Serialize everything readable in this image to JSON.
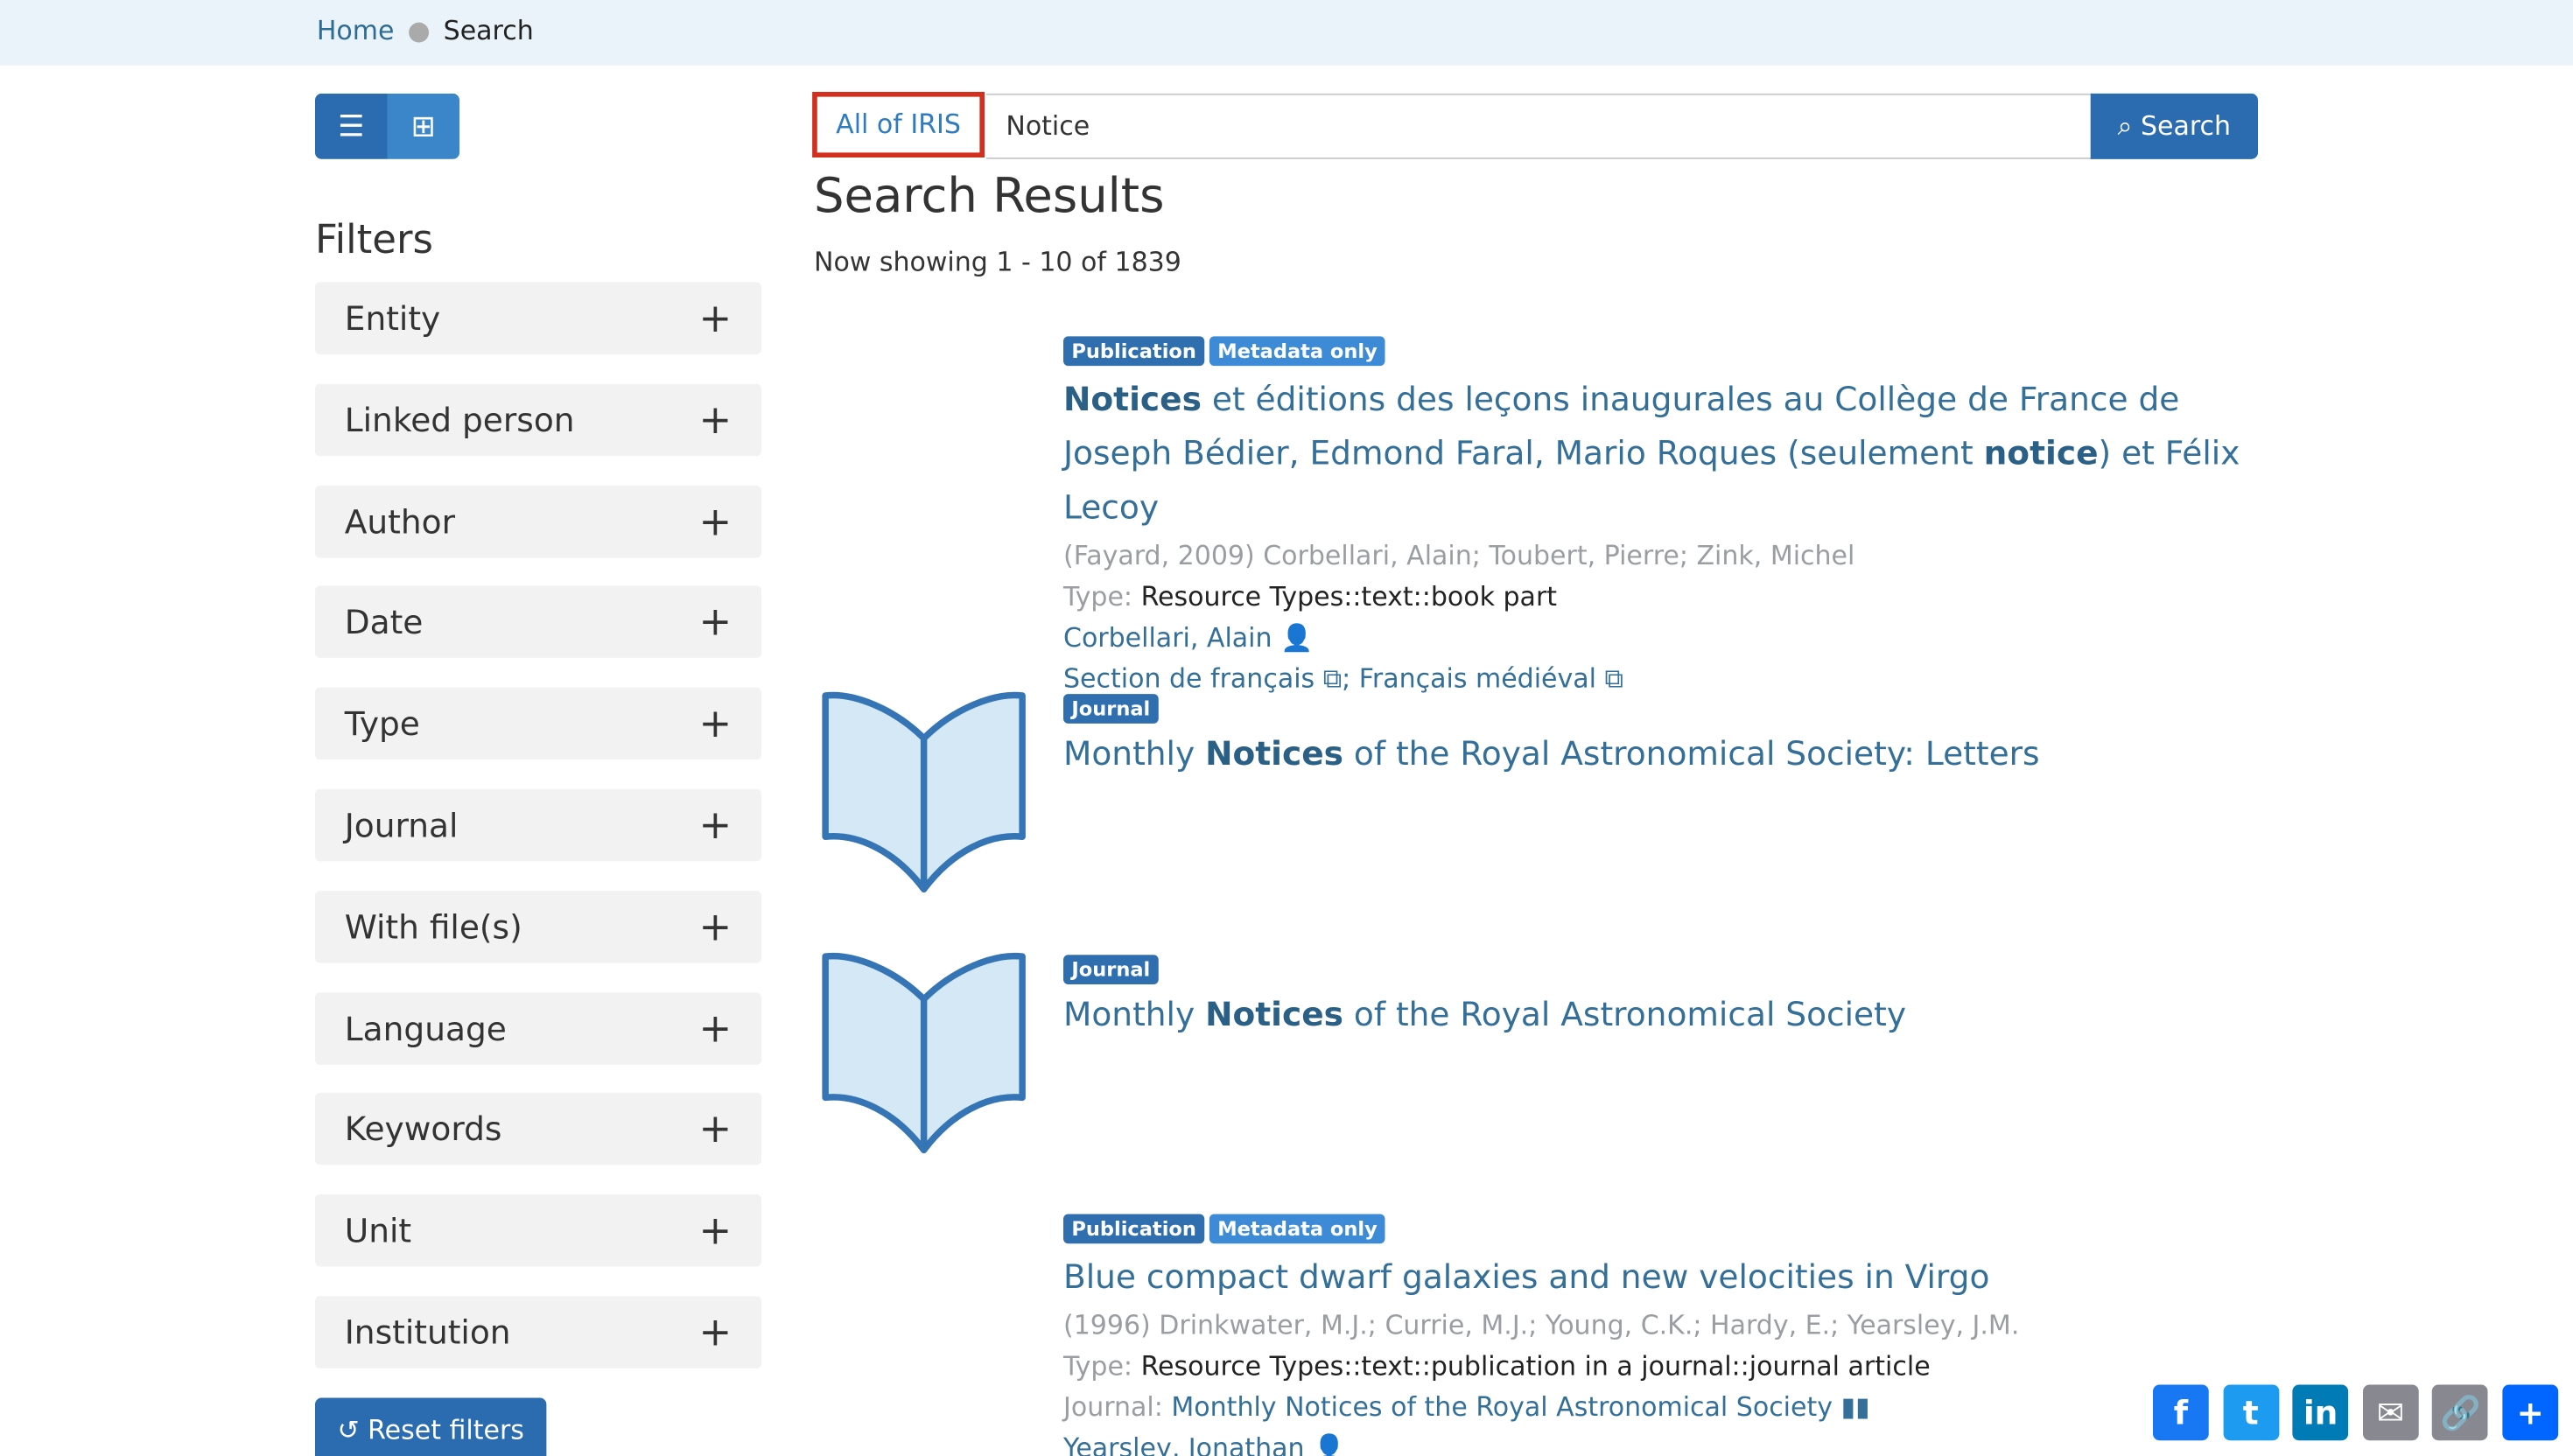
{
  "breadcrumb": {
    "home": "Home",
    "current": "Search"
  },
  "view_toggle": {
    "list_icon": "list-icon",
    "grid_icon": "grid-icon"
  },
  "filters": {
    "title": "Filters",
    "items": [
      "Entity",
      "Linked person",
      "Author",
      "Date",
      "Type",
      "Journal",
      "With file(s)",
      "Language",
      "Keywords",
      "Unit",
      "Institution"
    ],
    "reset": "Reset filters"
  },
  "search": {
    "scope": "All of IRIS",
    "query": "Notice",
    "button": "Search"
  },
  "results": {
    "title": "Search Results",
    "count": "Now showing 1 - 10 of 1839",
    "items": [
      {
        "badges": [
          "Publication",
          "Metadata only"
        ],
        "title_bold1": "Notices",
        "title_mid": " et éditions des leçons inaugurales au Collège de France de Joseph Bédier, Edmond Faral, Mario Roques (seulement ",
        "title_bold2": "notice",
        "title_end": ") et Félix Lecoy",
        "meta": "(Fayard, 2009) Corbellari, Alain; Toubert, Pierre; Zink, Michel",
        "type_label": "Type:",
        "type": "Resource Types::text::book part",
        "person": "Corbellari, Alain",
        "unit1": "Section de français",
        "unit2": "; Français médiéval"
      },
      {
        "badges": [
          "Journal"
        ],
        "title_pre": "Monthly ",
        "title_bold": "Notices",
        "title_post": " of the Royal Astronomical Society: Letters"
      },
      {
        "badges": [
          "Journal"
        ],
        "title_pre": "Monthly ",
        "title_bold": "Notices",
        "title_post": " of the Royal Astronomical Society"
      },
      {
        "badges": [
          "Publication",
          "Metadata only"
        ],
        "title": "Blue compact dwarf galaxies and new velocities in Virgo",
        "meta": "(1996) Drinkwater, M.J.; Currie, M.J.; Young, C.K.; Hardy, E.; Yearsley, J.M.",
        "type_label": "Type:",
        "type": "Resource Types::text::publication in a journal::journal article",
        "journal_label": "Journal:",
        "journal": "Monthly Notices of the Royal Astronomical Society",
        "person": "Yearsley, Jonathan"
      }
    ]
  },
  "share": [
    {
      "name": "Facebook",
      "color": "#1877f2"
    },
    {
      "name": "Twitter",
      "color": "#1d9bf0"
    },
    {
      "name": "LinkedIn",
      "color": "#007bb5"
    },
    {
      "name": "Email",
      "color": "#888990"
    },
    {
      "name": "Copy Link",
      "color": "#888990"
    },
    {
      "name": "Share",
      "color": "#0166ff"
    }
  ]
}
